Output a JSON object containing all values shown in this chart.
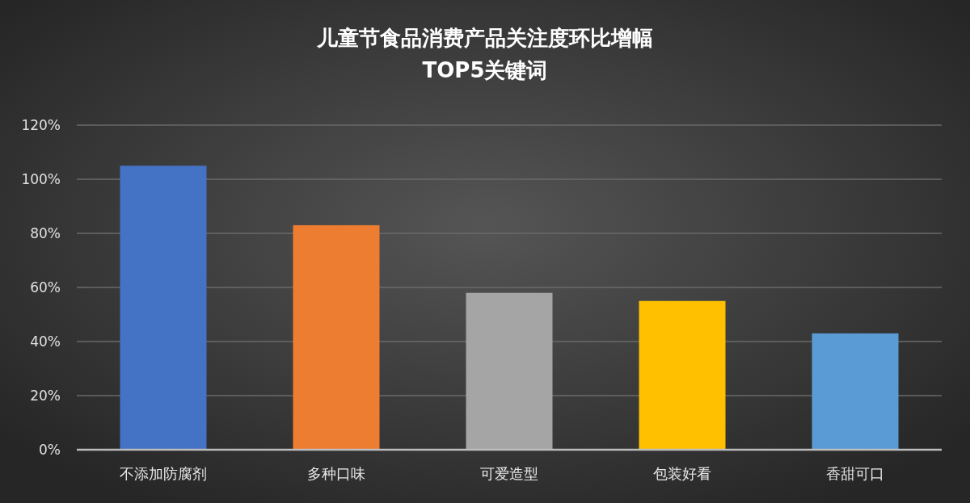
{
  "chart_data": {
    "type": "bar",
    "title": "儿童节食品消费产品关注度环比增幅TOP5关键词",
    "categories": [
      "不添加防腐剂",
      "多种口味",
      "可爱造型",
      "包装好看",
      "香甜可口"
    ],
    "values": [
      105,
      83,
      58,
      55,
      43
    ],
    "colors": [
      "#4472c4",
      "#ed7d31",
      "#a5a5a5",
      "#ffc000",
      "#5b9bd5"
    ],
    "ylim": [
      0,
      120
    ],
    "yticks": [
      {
        "value": 0,
        "label": "0%"
      },
      {
        "value": 20,
        "label": "20%"
      },
      {
        "value": 40,
        "label": "40%"
      },
      {
        "value": 60,
        "label": "60%"
      },
      {
        "value": 80,
        "label": "80%"
      },
      {
        "value": 100,
        "label": "100%"
      },
      {
        "value": 120,
        "label": "120%"
      }
    ],
    "grid": "y"
  }
}
